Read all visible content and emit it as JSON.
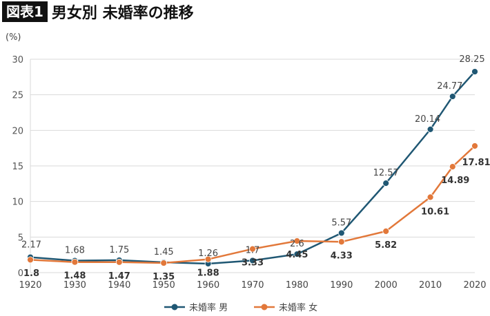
{
  "header": {
    "badge": "図表1",
    "title": "男女別 未婚率の推移"
  },
  "chart_data": {
    "type": "line",
    "title": "男女別 未婚率の推移",
    "ylabel": "(%)",
    "xlabel": "",
    "ylim": [
      0,
      30
    ],
    "yticks": [
      0,
      5,
      10,
      15,
      20,
      25,
      30
    ],
    "xticks": [
      1920,
      1930,
      1940,
      1950,
      1960,
      1970,
      1980,
      1990,
      2000,
      2010,
      2020
    ],
    "grid": true,
    "legend": "bottom",
    "series": [
      {
        "name": "未婚率 男",
        "color": "#1f5773",
        "x": [
          1920,
          1930,
          1940,
          1950,
          1960,
          1970,
          1980,
          1990,
          2000,
          2010,
          2015,
          2020
        ],
        "values": [
          2.17,
          1.68,
          1.75,
          1.45,
          1.26,
          1.7,
          2.6,
          5.57,
          12.57,
          20.14,
          24.77,
          28.25
        ],
        "labels": [
          "2.17",
          "1.68",
          "1.75",
          "1.45",
          "1.26",
          "1.7",
          "2.6",
          "5.57",
          "12.57",
          "20.14",
          "24.77",
          "28.25"
        ]
      },
      {
        "name": "未婚率 女",
        "color": "#e2783a",
        "x": [
          1920,
          1930,
          1940,
          1950,
          1960,
          1970,
          1980,
          1990,
          2000,
          2010,
          2015,
          2020
        ],
        "values": [
          1.8,
          1.48,
          1.47,
          1.35,
          1.88,
          3.33,
          4.45,
          4.33,
          5.82,
          10.61,
          14.89,
          17.81
        ],
        "labels": [
          "1.8",
          "1.48",
          "1.47",
          "1.35",
          "1.88",
          "3.33",
          "4.45",
          "4.33",
          "5.82",
          "10.61",
          "14.89",
          "17.81"
        ]
      }
    ]
  }
}
